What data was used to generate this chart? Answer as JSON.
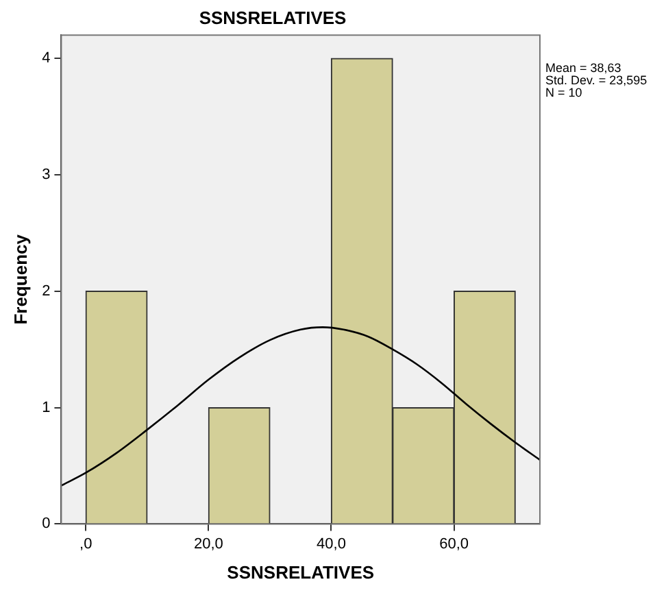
{
  "chart_data": {
    "type": "histogram",
    "title": "SSNSRELATIVES",
    "xlabel": "SSNSRELATIVES",
    "ylabel": "Frequency",
    "annotations": [
      "Mean = 38,63",
      "Std. Dev. = 23,595",
      "N = 10"
    ],
    "bins": [
      0,
      10,
      20,
      30,
      40,
      50,
      60,
      70
    ],
    "series": [
      {
        "type": "histogram",
        "color": "#d3cf98",
        "values": [
          2,
          0,
          1,
          0,
          4,
          1,
          2
        ]
      },
      {
        "type": "line",
        "color": "#000000",
        "x": [
          -4,
          0,
          5,
          10,
          15,
          20,
          25,
          30,
          35,
          38.6,
          42,
          46,
          50,
          54,
          58,
          62,
          66,
          70,
          74
        ],
        "values": [
          0.33,
          0.44,
          0.61,
          0.81,
          1.02,
          1.24,
          1.43,
          1.58,
          1.67,
          1.69,
          1.67,
          1.61,
          1.5,
          1.37,
          1.21,
          1.03,
          0.86,
          0.7,
          0.55
        ]
      }
    ],
    "xlim": [
      -4,
      74
    ],
    "xticks": [
      {
        "value": 0,
        "label": ",0"
      },
      {
        "value": 20,
        "label": "20,0"
      },
      {
        "value": 40,
        "label": "40,0"
      },
      {
        "value": 60,
        "label": "60,0"
      }
    ],
    "ylim": [
      0,
      4.2
    ],
    "yticks": [
      0,
      1,
      2,
      3,
      4
    ],
    "grid": false,
    "legend": false,
    "marker": "none",
    "line_style": "solid"
  }
}
